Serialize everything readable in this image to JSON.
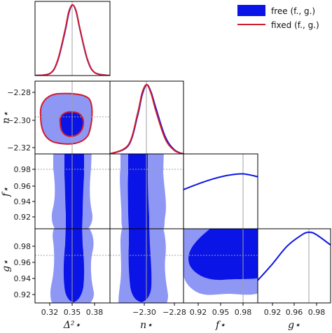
{
  "chart_data": [
    {
      "type": "line",
      "panel": "1d-delta2",
      "x": [
        0.3,
        0.32,
        0.33,
        0.34,
        0.345,
        0.35,
        0.355,
        0.36,
        0.37,
        0.38,
        0.4
      ],
      "series": [
        {
          "name": "free (f., g.)",
          "values": [
            0.0,
            0.03,
            0.2,
            0.62,
            0.88,
            1.0,
            0.9,
            0.65,
            0.22,
            0.04,
            0.0
          ]
        },
        {
          "name": "fixed (f., g.)",
          "values": [
            0.0,
            0.03,
            0.21,
            0.64,
            0.9,
            1.0,
            0.91,
            0.66,
            0.23,
            0.04,
            0.0
          ]
        }
      ],
      "xlim": [
        0.3,
        0.4
      ],
      "ylim": [
        0,
        1.05
      ],
      "marker_line": 0.35
    },
    {
      "type": "line",
      "panel": "1d-ns",
      "x": [
        -2.34,
        -2.32,
        -2.31,
        -2.305,
        -2.3,
        -2.295,
        -2.29,
        -2.28,
        -2.27,
        -2.26
      ],
      "series": [
        {
          "name": "free (f., g.)",
          "values": [
            0.0,
            0.12,
            0.55,
            0.85,
            1.0,
            0.88,
            0.66,
            0.25,
            0.06,
            0.0
          ]
        },
        {
          "name": "fixed (f., g.)",
          "values": [
            0.0,
            0.13,
            0.58,
            0.88,
            1.0,
            0.86,
            0.62,
            0.22,
            0.05,
            0.0
          ]
        }
      ],
      "xlim": [
        -2.34,
        -2.26
      ],
      "ylim": [
        0,
        1.05
      ],
      "marker_line": -2.3
    },
    {
      "type": "line",
      "panel": "1d-fstar",
      "x": [
        0.9,
        0.92,
        0.94,
        0.96,
        0.98,
        1.0
      ],
      "series": [
        {
          "name": "free (f., g.)",
          "values": [
            0.55,
            0.63,
            0.7,
            0.75,
            0.77,
            0.73
          ]
        }
      ],
      "xlim": [
        0.9,
        1.0
      ],
      "ylim": [
        0,
        1.05
      ],
      "marker_line": 0.98
    },
    {
      "type": "line",
      "panel": "1d-gstar",
      "x": [
        0.9,
        0.92,
        0.94,
        0.96,
        0.97,
        0.98,
        1.0
      ],
      "series": [
        {
          "name": "free (f., g.)",
          "values": [
            0.32,
            0.55,
            0.8,
            0.96,
            1.0,
            0.97,
            0.82
          ]
        }
      ],
      "xlim": [
        0.9,
        1.0
      ],
      "ylim": [
        0,
        1.05
      ],
      "marker_line": 0.97
    },
    {
      "type": "scatter",
      "panel": "2d-contours",
      "pairs": [
        {
          "x": "Δ²⋆",
          "y": "n⋆",
          "center": [
            0.351,
            -2.3
          ],
          "marker": [
            0.35,
            -2.3
          ]
        },
        {
          "x": "Δ²⋆",
          "y": "f⋆",
          "center": [
            0.351,
            0.955
          ],
          "marker": [
            0.35,
            0.98
          ]
        },
        {
          "x": "Δ²⋆",
          "y": "g⋆",
          "center": [
            0.351,
            0.955
          ],
          "marker": [
            0.35,
            0.97
          ]
        },
        {
          "x": "n⋆",
          "y": "f⋆",
          "center": [
            -2.302,
            0.955
          ],
          "marker": [
            -2.3,
            0.98
          ]
        },
        {
          "x": "n⋆",
          "y": "g⋆",
          "center": [
            -2.302,
            0.955
          ],
          "marker": [
            -2.3,
            0.97
          ]
        },
        {
          "x": "f⋆",
          "y": "g⋆",
          "center": [
            0.96,
            0.96
          ],
          "marker": [
            0.98,
            0.97
          ]
        }
      ]
    }
  ],
  "legend": {
    "placement": "top-right",
    "items": [
      {
        "label": "free (f., g.)",
        "color": "#0000ee",
        "style": "patch"
      },
      {
        "label": "fixed (f., g.)",
        "color": "#d01c2c",
        "style": "line"
      }
    ]
  },
  "axes": {
    "x_labels": [
      "Δ²⋆",
      "n⋆",
      "f⋆",
      "g⋆"
    ],
    "y_labels": [
      "n⋆",
      "f⋆",
      "g⋆"
    ],
    "delta_ticks": [
      "0.32",
      "0.35",
      "0.38"
    ],
    "n_ticks": [
      "−2.30",
      "−2.28"
    ],
    "fg_ticks": [
      "0.92",
      "0.95",
      "0.98"
    ],
    "g_ticks": [
      "0.92",
      "0.96",
      "0.98"
    ],
    "n_yticks": [
      "−2.28",
      "−2.30",
      "−2.32"
    ],
    "f_yticks": [
      "0.98",
      "0.96",
      "0.94",
      "0.92"
    ],
    "g_yticks": [
      "0.98",
      "0.96",
      "0.94",
      "0.92"
    ]
  },
  "colors": {
    "inner": "#0a14e6",
    "outer": "#8e97f4",
    "red": "#d01c2c",
    "marker": "#a0a0a0"
  }
}
